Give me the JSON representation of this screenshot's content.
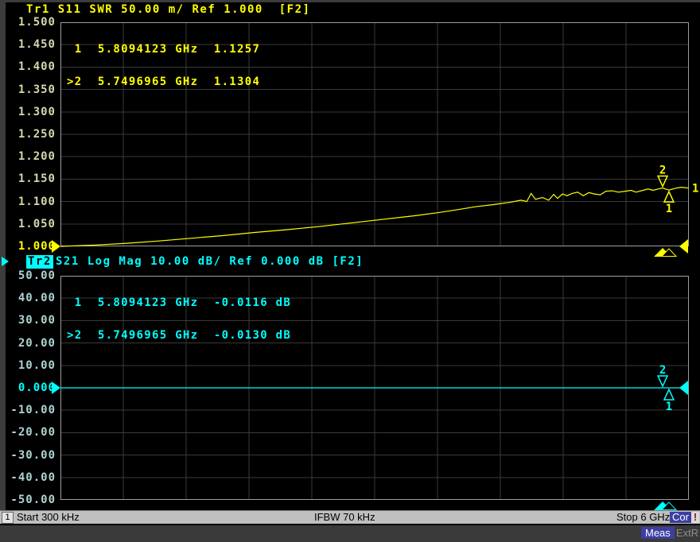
{
  "window": {
    "bg": "#000000",
    "frame": "#3c3c3c"
  },
  "layout_colors": {
    "grid": "#3a3a3a",
    "plot_border": "#9e9e9e"
  },
  "chart_data": [
    {
      "id": "tr1",
      "type": "line",
      "title": "Tr1 S11 SWR 50.00 m/ Ref 1.000  [F2]",
      "color": "#ffff00",
      "dim_label_color": "#d6d6ac",
      "y_labels": [
        "1.500",
        "1.450",
        "1.400",
        "1.350",
        "1.300",
        "1.250",
        "1.200",
        "1.150",
        "1.100",
        "1.050",
        "1.000"
      ],
      "ref_index": 10,
      "y_max": 1.5,
      "y_min": 1.0,
      "x_start": "300 kHz",
      "x_stop": "6 GHz",
      "marker_readout": [
        " 1  5.8094123 GHz  1.1257",
        ">2  5.7496965 GHz  1.1304"
      ],
      "markers": [
        {
          "label": "2",
          "f": 0.9583,
          "v": 1.1304,
          "side": "above",
          "active": true
        },
        {
          "label": "1",
          "f": 0.9683,
          "v": 1.1257,
          "side": "below",
          "active": false
        }
      ],
      "trace_end_label": "1",
      "series": [
        {
          "name": "S11 SWR",
          "points": [
            [
              0,
              1.0
            ],
            [
              0.056,
              1.003
            ],
            [
              0.106,
              1.007
            ],
            [
              0.157,
              1.012
            ],
            [
              0.208,
              1.018
            ],
            [
              0.258,
              1.024
            ],
            [
              0.309,
              1.031
            ],
            [
              0.359,
              1.037
            ],
            [
              0.41,
              1.044
            ],
            [
              0.461,
              1.052
            ],
            [
              0.511,
              1.06
            ],
            [
              0.562,
              1.068
            ],
            [
              0.6,
              1.075
            ],
            [
              0.632,
              1.082
            ],
            [
              0.663,
              1.089
            ],
            [
              0.689,
              1.093
            ],
            [
              0.714,
              1.098
            ],
            [
              0.733,
              1.103
            ],
            [
              0.742,
              1.1
            ],
            [
              0.749,
              1.118
            ],
            [
              0.756,
              1.105
            ],
            [
              0.767,
              1.109
            ],
            [
              0.777,
              1.103
            ],
            [
              0.785,
              1.116
            ],
            [
              0.791,
              1.107
            ],
            [
              0.799,
              1.117
            ],
            [
              0.806,
              1.113
            ],
            [
              0.814,
              1.118
            ],
            [
              0.823,
              1.121
            ],
            [
              0.832,
              1.113
            ],
            [
              0.841,
              1.12
            ],
            [
              0.849,
              1.117
            ],
            [
              0.859,
              1.115
            ],
            [
              0.868,
              1.123
            ],
            [
              0.878,
              1.124
            ],
            [
              0.888,
              1.121
            ],
            [
              0.899,
              1.123
            ],
            [
              0.908,
              1.125
            ],
            [
              0.916,
              1.121
            ],
            [
              0.927,
              1.125
            ],
            [
              0.935,
              1.128
            ],
            [
              0.943,
              1.125
            ],
            [
              0.951,
              1.128
            ],
            [
              0.9583,
              1.1304
            ],
            [
              0.965,
              1.127
            ],
            [
              0.9683,
              1.1257
            ],
            [
              0.98,
              1.13
            ],
            [
              0.988,
              1.132
            ],
            [
              1,
              1.13
            ]
          ]
        }
      ]
    },
    {
      "id": "tr2",
      "type": "line",
      "badge": "Tr2",
      "title_rest": "S21 Log Mag 10.00 dB/ Ref 0.000 dB [F2]",
      "color": "#00ffff",
      "dim_label_color": "#aed2d2",
      "y_labels": [
        "50.00",
        "40.00",
        "30.00",
        "20.00",
        "10.00",
        "0.000",
        "-10.00",
        "-20.00",
        "-30.00",
        "-40.00",
        "-50.00"
      ],
      "ref_index": 5,
      "y_max": 50,
      "y_min": -50,
      "x_start": "300 kHz",
      "x_stop": "6 GHz",
      "marker_readout": [
        " 1  5.8094123 GHz  -0.0116 dB",
        ">2  5.7496965 GHz  -0.0130 dB"
      ],
      "markers": [
        {
          "label": "2",
          "f": 0.9583,
          "v": 0,
          "side": "above",
          "active": true
        },
        {
          "label": "1",
          "f": 0.9683,
          "v": 0,
          "side": "below",
          "active": false
        }
      ],
      "trace_end_label": "",
      "series": [
        {
          "name": "S21 Log Mag",
          "points": [
            [
              0,
              0
            ],
            [
              1,
              0
            ]
          ]
        }
      ]
    }
  ],
  "status_bar": {
    "channel": "1",
    "start": "Start 300 kHz",
    "ifbw": "IFBW 70 kHz",
    "stop": "Stop 6 GHz",
    "cor": "Cor",
    "alert": "!",
    "bg": "#bfbfbf",
    "badge_bg": "#3e3ea2"
  },
  "footer": {
    "meas": "Meas",
    "extref": "ExtR",
    "bg": "#3a3a3a"
  }
}
